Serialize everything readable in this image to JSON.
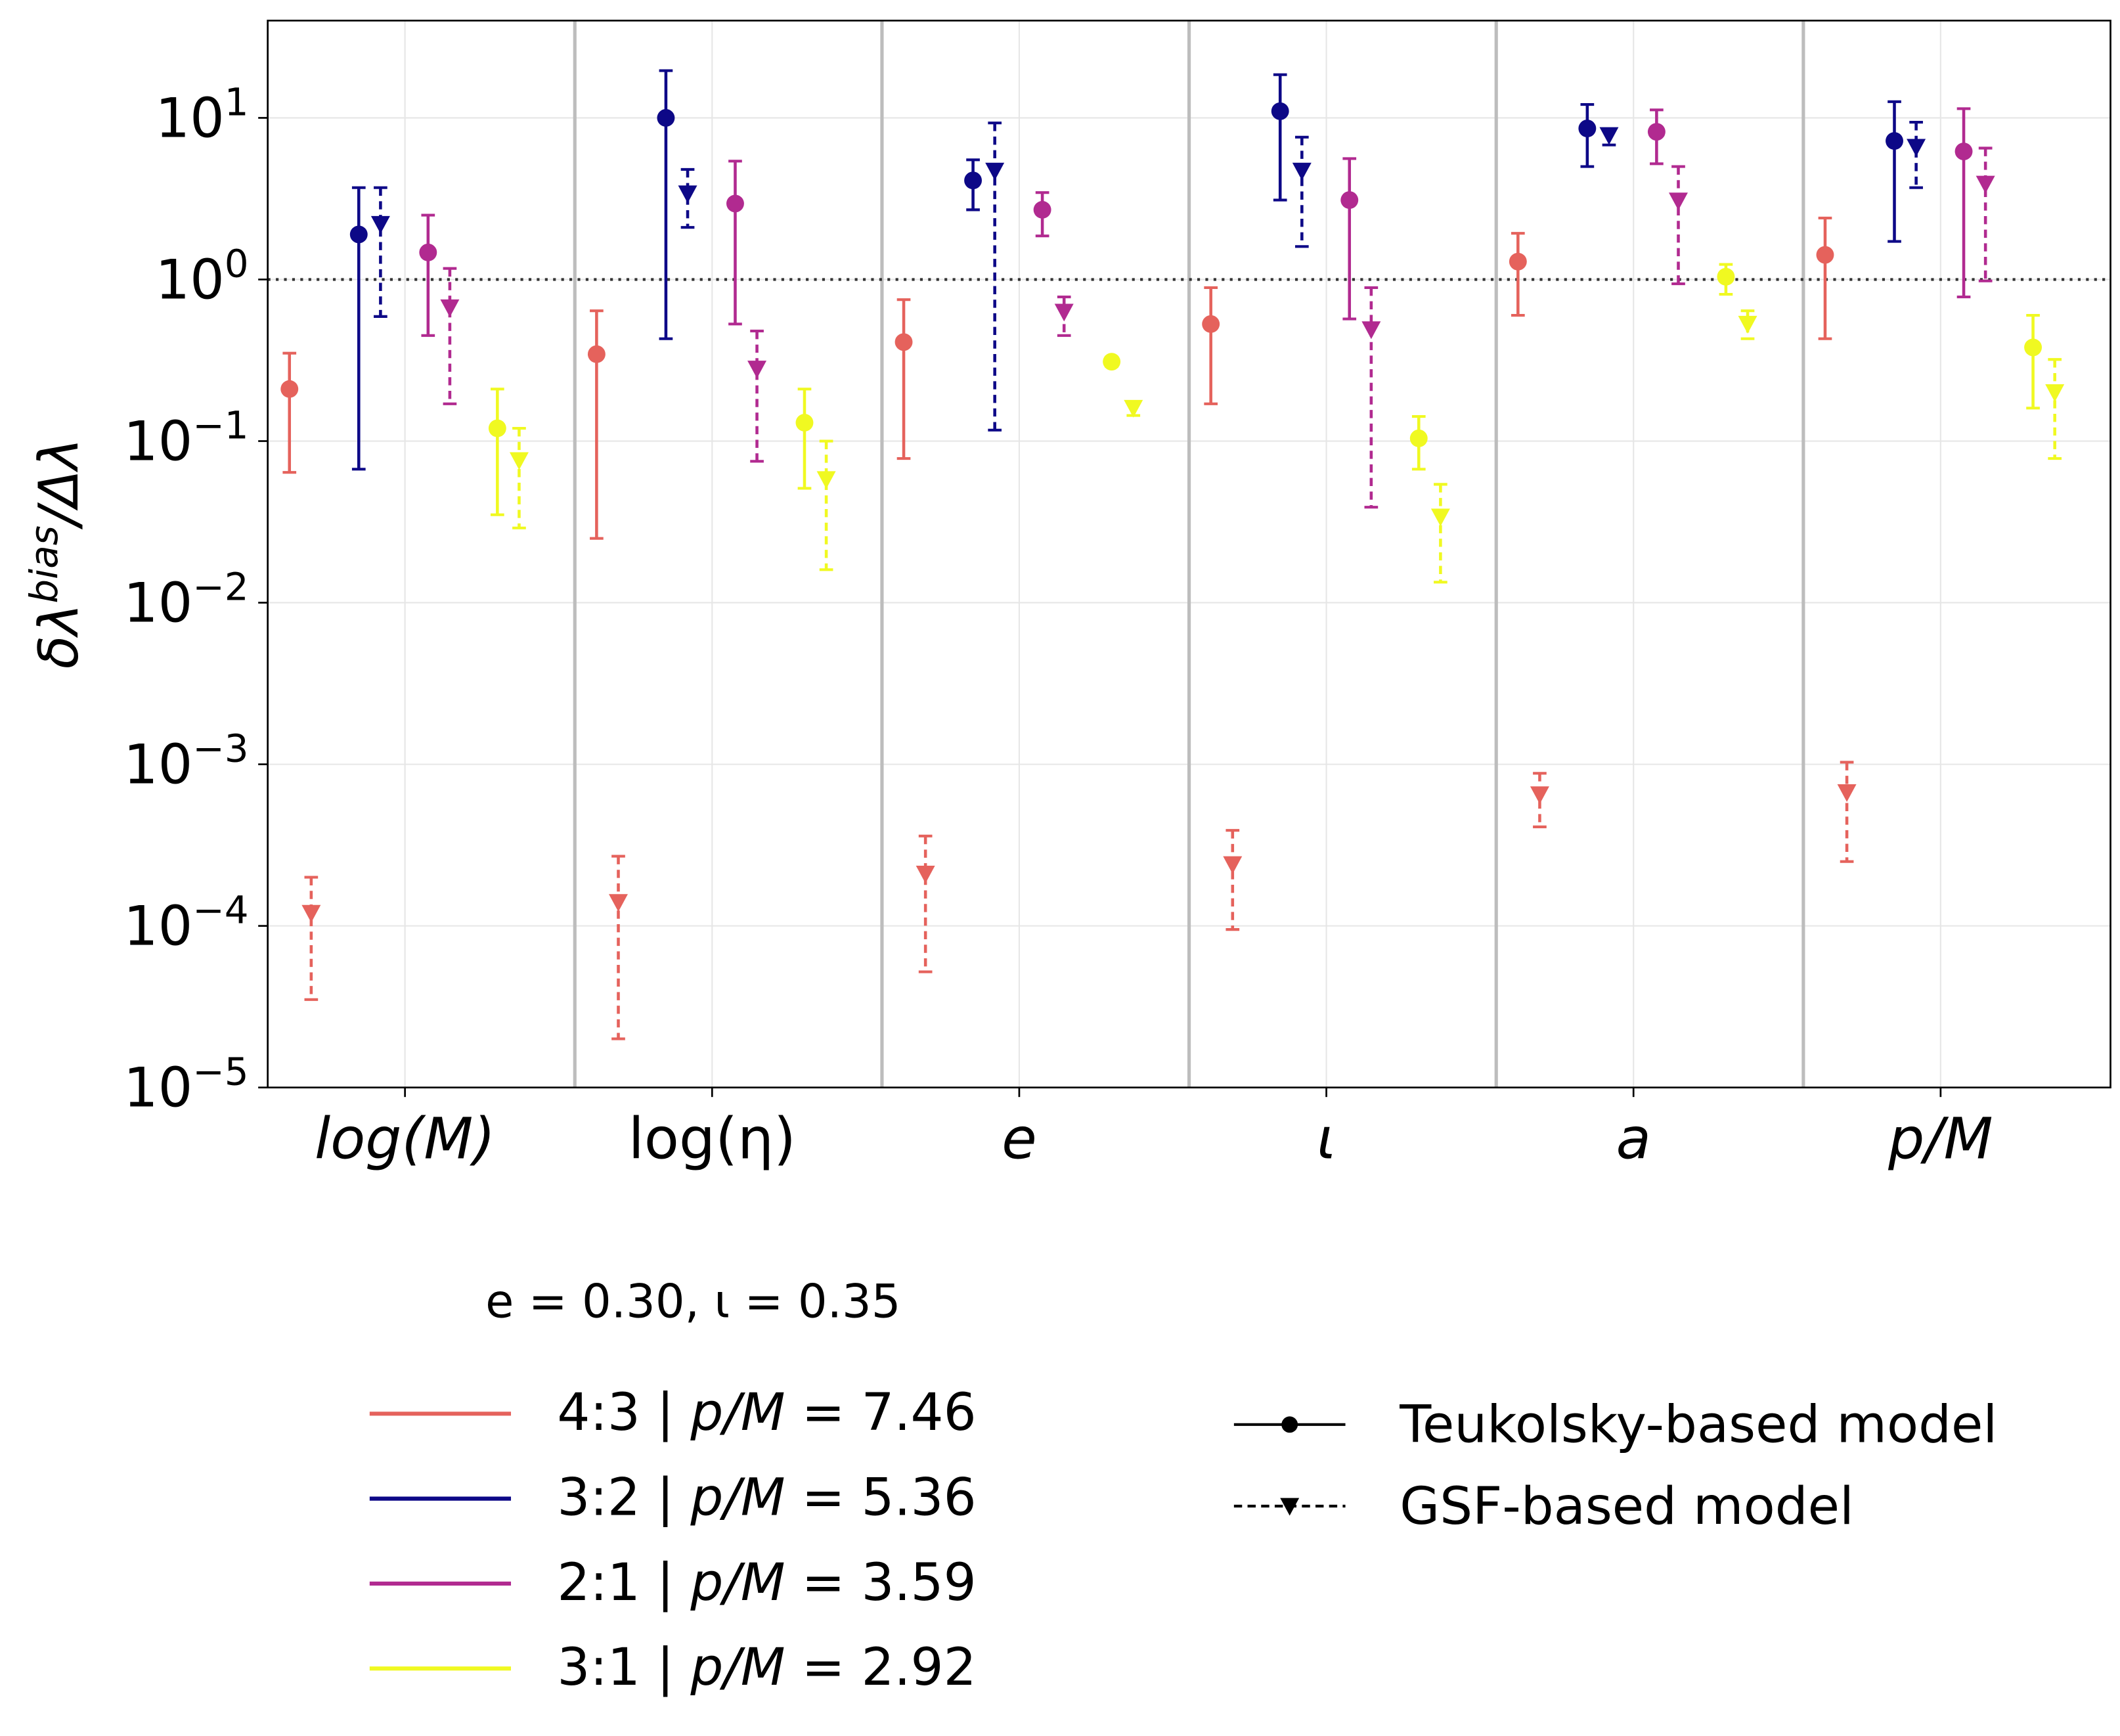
{
  "chart_data": {
    "type": "scatter",
    "title": "",
    "xlabel": "",
    "ylabel": "δλ^bias/Δλ",
    "ylabel_main": "δλ",
    "ylabel_sup": "bias",
    "ylabel_tail": "/Δλ",
    "yscale": "log",
    "ylim": [
      1e-05,
      40
    ],
    "grid": true,
    "reference_line": {
      "y": 1,
      "style": "dotted",
      "color": "#333333"
    },
    "yticks": [
      {
        "value": 10.0,
        "base": "10",
        "exp": "1"
      },
      {
        "value": 1.0,
        "base": "10",
        "exp": "0"
      },
      {
        "value": 0.1,
        "base": "10",
        "exp": "−1"
      },
      {
        "value": 0.01,
        "base": "10",
        "exp": "−2"
      },
      {
        "value": 0.001,
        "base": "10",
        "exp": "−3"
      },
      {
        "value": 0.0001,
        "base": "10",
        "exp": "−4"
      },
      {
        "value": 1e-05,
        "base": "10",
        "exp": "−5"
      }
    ],
    "categories": [
      "log(M)",
      "log(η)",
      "e",
      "ι",
      "a",
      "p/M"
    ],
    "legend_title": "e = 0.30, ι = 0.35",
    "series": [
      {
        "name": "4:3 | p/M = 7.46",
        "ratio": "4:3",
        "pm": "7.46",
        "color": "#e5625c",
        "teukolsky": [
          [
            0.21,
            0.35,
            0.064
          ],
          [
            0.345,
            0.64,
            0.025
          ],
          [
            0.41,
            0.75,
            0.078
          ],
          [
            0.53,
            0.89,
            0.17
          ],
          [
            1.29,
            1.93,
            0.6
          ],
          [
            1.42,
            2.4,
            0.43
          ]
        ],
        "gsf": [
          [
            0.00012,
            0.0002,
            3.5e-05
          ],
          [
            0.00014,
            0.00027,
            2e-05
          ],
          [
            0.00021,
            0.00036,
            5.2e-05
          ],
          [
            0.00024,
            0.00039,
            9.5e-05
          ],
          [
            0.00065,
            0.00088,
            0.00041
          ],
          [
            0.00067,
            0.00103,
            0.00025
          ]
        ]
      },
      {
        "name": "3:2 | p/M = 5.36",
        "ratio": "3:2",
        "pm": "5.36",
        "color": "#0d0887",
        "teukolsky": [
          [
            1.9,
            3.7,
            0.067
          ],
          [
            10,
            19.6,
            0.43
          ],
          [
            4.1,
            5.5,
            2.7
          ],
          [
            11,
            18.5,
            3.1
          ],
          [
            8.6,
            12.1,
            5
          ],
          [
            7.2,
            12.6,
            1.72
          ]
        ],
        "gsf": [
          [
            2.2,
            3.7,
            0.59
          ],
          [
            3.4,
            4.8,
            2.1
          ],
          [
            4.7,
            9.3,
            0.117
          ],
          [
            4.7,
            7.6,
            1.6
          ],
          [
            7.8,
            8.4,
            6.8
          ],
          [
            6.6,
            9.4,
            3.7
          ]
        ]
      },
      {
        "name": "2:1 | p/M = 3.59",
        "ratio": "2:1",
        "pm": "3.59",
        "color": "#b12a90",
        "teukolsky": [
          [
            1.47,
            2.5,
            0.45
          ],
          [
            2.95,
            5.4,
            0.53
          ],
          [
            2.7,
            3.45,
            1.86
          ],
          [
            3.1,
            5.6,
            0.57
          ],
          [
            8.2,
            11.2,
            5.2
          ],
          [
            6.2,
            11.4,
            0.78
          ]
        ],
        "gsf": [
          [
            0.67,
            1.17,
            0.17
          ],
          [
            0.28,
            0.48,
            0.075
          ],
          [
            0.63,
            0.78,
            0.45
          ],
          [
            0.49,
            0.89,
            0.039
          ],
          [
            3.07,
            5,
            0.94
          ],
          [
            3.9,
            6.5,
            0.98
          ]
        ]
      },
      {
        "name": "3:1 | p/M = 2.92",
        "ratio": "3:1",
        "pm": "2.92",
        "color": "#f0f921",
        "teukolsky": [
          [
            0.12,
            0.21,
            0.035
          ],
          [
            0.13,
            0.21,
            0.051
          ],
          [
            0.31,
            0.33,
            0.29
          ],
          [
            0.104,
            0.142,
            0.067
          ],
          [
            1.04,
            1.24,
            0.81
          ],
          [
            0.38,
            0.6,
            0.16
          ]
        ],
        "gsf": [
          [
            0.076,
            0.12,
            0.029
          ],
          [
            0.058,
            0.1,
            0.016
          ],
          [
            0.16,
            0.175,
            0.144
          ],
          [
            0.034,
            0.054,
            0.0134
          ],
          [
            0.53,
            0.64,
            0.43
          ],
          [
            0.2,
            0.32,
            0.078
          ]
        ]
      }
    ],
    "point_format": "[value, upper, lower]",
    "model_legend": [
      {
        "label": "Teukolsky-based model",
        "marker": "circle",
        "line": "solid"
      },
      {
        "label": "GSF-based model",
        "marker": "triangle-down",
        "line": "dashed"
      }
    ]
  }
}
